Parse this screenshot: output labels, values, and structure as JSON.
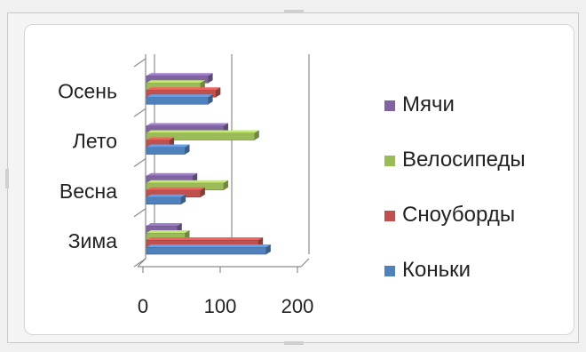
{
  "chart_data": {
    "type": "bar",
    "orientation": "horizontal",
    "style": "3d-clustered",
    "categories": [
      "Зима",
      "Весна",
      "Лето",
      "Осень"
    ],
    "series": [
      {
        "name": "Коньки",
        "color": "#4f81bd",
        "values": [
          155,
          45,
          50,
          80
        ]
      },
      {
        "name": "Сноуборды",
        "color": "#c0504d",
        "values": [
          145,
          70,
          30,
          90
        ]
      },
      {
        "name": "Велосипеды",
        "color": "#9bbb59",
        "values": [
          50,
          100,
          140,
          70
        ]
      },
      {
        "name": "Мячи",
        "color": "#8064a2",
        "values": [
          40,
          60,
          100,
          80
        ]
      }
    ],
    "xlim": [
      0,
      200
    ],
    "xticks": [
      "0",
      "100",
      "200"
    ],
    "grid": true,
    "legend": "right",
    "legend_order": [
      "Мячи",
      "Велосипеды",
      "Сноуборды",
      "Коньки"
    ],
    "title": "",
    "xlabel": "",
    "ylabel": ""
  }
}
